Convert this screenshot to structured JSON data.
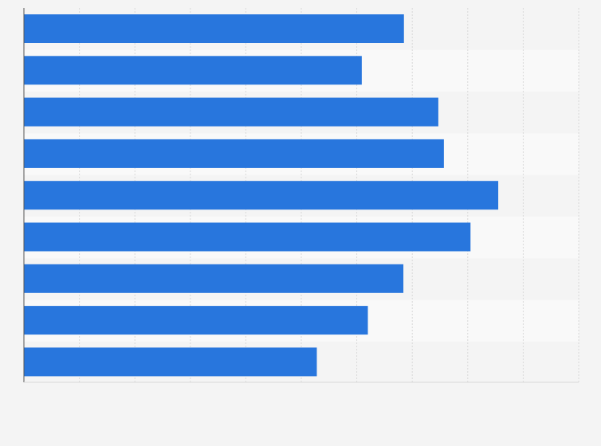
{
  "chart_data": {
    "type": "bar",
    "orientation": "horizontal",
    "title": "",
    "xlabel": "",
    "ylabel": "",
    "categories": [
      "",
      "",
      "",
      "",
      "",
      "",
      "",
      "",
      ""
    ],
    "values": [
      6.85,
      6.09,
      7.47,
      7.57,
      8.55,
      8.05,
      6.84,
      6.2,
      5.28
    ],
    "xlim": [
      0,
      10
    ],
    "x_ticks": [],
    "grid": true,
    "legend": "none",
    "colors": {
      "bar": "#2876dd",
      "background": "#f4f4f4",
      "band_light": "#f9f9f9",
      "gridline": "#d9d9d9",
      "axis": "#555555"
    }
  }
}
